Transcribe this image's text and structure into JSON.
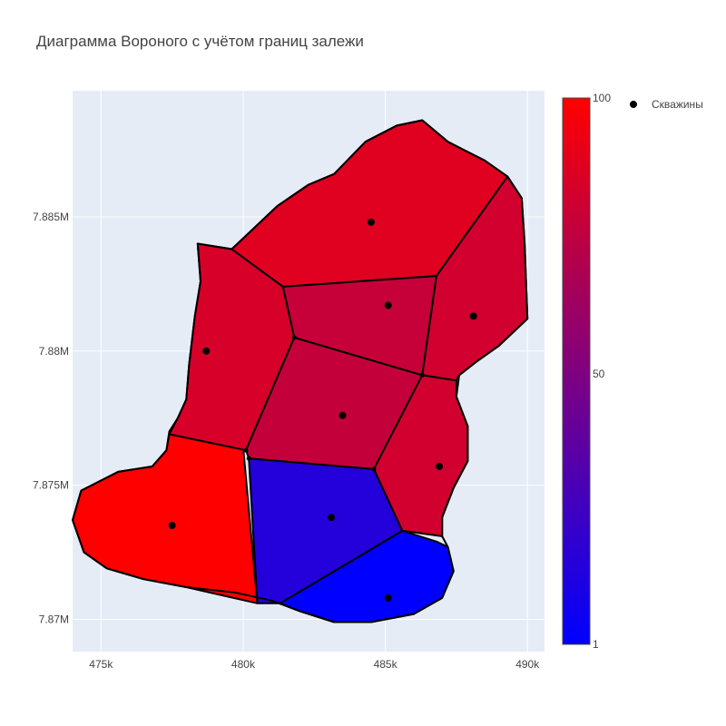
{
  "chart_data": {
    "type": "voronoi",
    "title": "Диаграмма Вороного с учётом границ залежи",
    "xlabel": "",
    "ylabel": "",
    "xlim": [
      474000,
      490600
    ],
    "ylim": [
      7868800,
      7889700
    ],
    "x_ticks": [
      475000,
      480000,
      485000,
      490000
    ],
    "x_tick_labels": [
      "475k",
      "480k",
      "485k",
      "490k"
    ],
    "y_ticks": [
      7870000,
      7875000,
      7880000,
      7885000
    ],
    "y_tick_labels": [
      "7.87M",
      "7.875M",
      "7.88M",
      "7.885M"
    ],
    "grid": true,
    "colorscale": {
      "low_color": "#0000ff",
      "high_color": "#ff0000",
      "min": 1,
      "max": 100,
      "tick_values": [
        1,
        50,
        100
      ],
      "tick_labels": [
        "1",
        "50",
        "100"
      ]
    },
    "legend": {
      "placement": "top-right",
      "entries": [
        {
          "name": "Скважины",
          "color": "#000000"
        }
      ]
    },
    "boundary": [
      [
        478400,
        7884000
      ],
      [
        479600,
        7883800
      ],
      [
        481200,
        7885400
      ],
      [
        482300,
        7886200
      ],
      [
        483200,
        7886600
      ],
      [
        484300,
        7887800
      ],
      [
        485400,
        7888400
      ],
      [
        486300,
        7888600
      ],
      [
        487200,
        7887800
      ],
      [
        488500,
        7887100
      ],
      [
        489300,
        7886500
      ],
      [
        489800,
        7885700
      ],
      [
        489900,
        7884000
      ],
      [
        490000,
        7881200
      ],
      [
        489000,
        7880200
      ],
      [
        488200,
        7879600
      ],
      [
        487600,
        7879100
      ],
      [
        487500,
        7878300
      ],
      [
        487900,
        7877200
      ],
      [
        487900,
        7875900
      ],
      [
        487400,
        7874900
      ],
      [
        487000,
        7873800
      ],
      [
        487000,
        7873100
      ],
      [
        487200,
        7872700
      ],
      [
        487400,
        7871800
      ],
      [
        487000,
        7870800
      ],
      [
        486000,
        7870200
      ],
      [
        484500,
        7869900
      ],
      [
        483200,
        7869900
      ],
      [
        482000,
        7870300
      ],
      [
        481000,
        7870700
      ],
      [
        479700,
        7871000
      ],
      [
        478000,
        7871200
      ],
      [
        476500,
        7871500
      ],
      [
        475200,
        7871900
      ],
      [
        474400,
        7872500
      ],
      [
        474000,
        7873700
      ],
      [
        474300,
        7874800
      ],
      [
        475600,
        7875500
      ],
      [
        476800,
        7875700
      ],
      [
        477300,
        7876300
      ],
      [
        477400,
        7877000
      ],
      [
        477700,
        7877500
      ],
      [
        478000,
        7878200
      ],
      [
        478100,
        7879500
      ],
      [
        478300,
        7881300
      ],
      [
        478500,
        7882600
      ],
      [
        478400,
        7884000
      ]
    ],
    "cells": [
      {
        "value": 100,
        "polygon": [
          [
            477400,
            7876900
          ],
          [
            480000,
            7876400
          ],
          [
            480500,
            7870600
          ],
          [
            478000,
            7871200
          ],
          [
            476500,
            7871500
          ],
          [
            475200,
            7871900
          ],
          [
            474400,
            7872500
          ],
          [
            474000,
            7873700
          ],
          [
            474300,
            7874800
          ],
          [
            475600,
            7875500
          ],
          [
            476800,
            7875700
          ],
          [
            477300,
            7876300
          ]
        ]
      },
      {
        "value": 15,
        "polygon": [
          [
            480200,
            7876000
          ],
          [
            484600,
            7875600
          ],
          [
            485600,
            7873300
          ],
          [
            481300,
            7870600
          ],
          [
            480500,
            7870600
          ]
        ]
      },
      {
        "value": 1,
        "polygon": [
          [
            481300,
            7870600
          ],
          [
            485600,
            7873300
          ],
          [
            486800,
            7872900
          ],
          [
            487200,
            7872700
          ],
          [
            487400,
            7871800
          ],
          [
            487000,
            7870800
          ],
          [
            486000,
            7870200
          ],
          [
            484500,
            7869900
          ],
          [
            483200,
            7869900
          ],
          [
            482000,
            7870300
          ]
        ]
      },
      {
        "value": 84,
        "polygon": [
          [
            477400,
            7876900
          ],
          [
            477700,
            7877500
          ],
          [
            478000,
            7878200
          ],
          [
            478100,
            7879500
          ],
          [
            478300,
            7881300
          ],
          [
            478500,
            7882600
          ],
          [
            478400,
            7884000
          ],
          [
            479600,
            7883800
          ],
          [
            481400,
            7882400
          ],
          [
            481800,
            7880500
          ],
          [
            480100,
            7876300
          ]
        ]
      },
      {
        "value": 77,
        "polygon": [
          [
            480100,
            7876300
          ],
          [
            481800,
            7880500
          ],
          [
            486300,
            7879100
          ],
          [
            484600,
            7875600
          ],
          [
            480200,
            7876000
          ]
        ]
      },
      {
        "value": 82,
        "polygon": [
          [
            484600,
            7875600
          ],
          [
            486300,
            7879100
          ],
          [
            487500,
            7878900
          ],
          [
            487500,
            7878300
          ],
          [
            487900,
            7877200
          ],
          [
            487900,
            7875900
          ],
          [
            487400,
            7874900
          ],
          [
            487000,
            7873800
          ],
          [
            487000,
            7873100
          ],
          [
            485600,
            7873300
          ]
        ]
      },
      {
        "value": 78,
        "polygon": [
          [
            481400,
            7882400
          ],
          [
            481800,
            7880500
          ],
          [
            486300,
            7879100
          ],
          [
            486800,
            7882800
          ]
        ]
      },
      {
        "value": 88,
        "polygon": [
          [
            479600,
            7883800
          ],
          [
            481400,
            7882400
          ],
          [
            486800,
            7882800
          ],
          [
            489300,
            7886500
          ],
          [
            488500,
            7887100
          ],
          [
            487200,
            7887800
          ],
          [
            486300,
            7888600
          ],
          [
            485400,
            7888400
          ],
          [
            484300,
            7887800
          ],
          [
            483200,
            7886600
          ],
          [
            482300,
            7886200
          ],
          [
            481200,
            7885400
          ]
        ]
      },
      {
        "value": 82,
        "polygon": [
          [
            486800,
            7882800
          ],
          [
            489300,
            7886500
          ],
          [
            489800,
            7885700
          ],
          [
            489900,
            7884000
          ],
          [
            490000,
            7881200
          ],
          [
            489000,
            7880200
          ],
          [
            488200,
            7879600
          ],
          [
            487600,
            7879100
          ],
          [
            487500,
            7878900
          ],
          [
            486300,
            7879100
          ]
        ]
      }
    ],
    "vertices": [
      [
        480100,
        7876300
      ],
      [
        480200,
        7876000
      ],
      [
        481800,
        7880500
      ],
      [
        486300,
        7879100
      ],
      [
        484600,
        7875600
      ]
    ],
    "wells": [
      [
        477500,
        7873500
      ],
      [
        478700,
        7880000
      ],
      [
        484500,
        7884800
      ],
      [
        485100,
        7881700
      ],
      [
        488100,
        7881300
      ],
      [
        483500,
        7877600
      ],
      [
        486900,
        7875700
      ],
      [
        483100,
        7873800
      ],
      [
        485100,
        7870800
      ]
    ]
  }
}
